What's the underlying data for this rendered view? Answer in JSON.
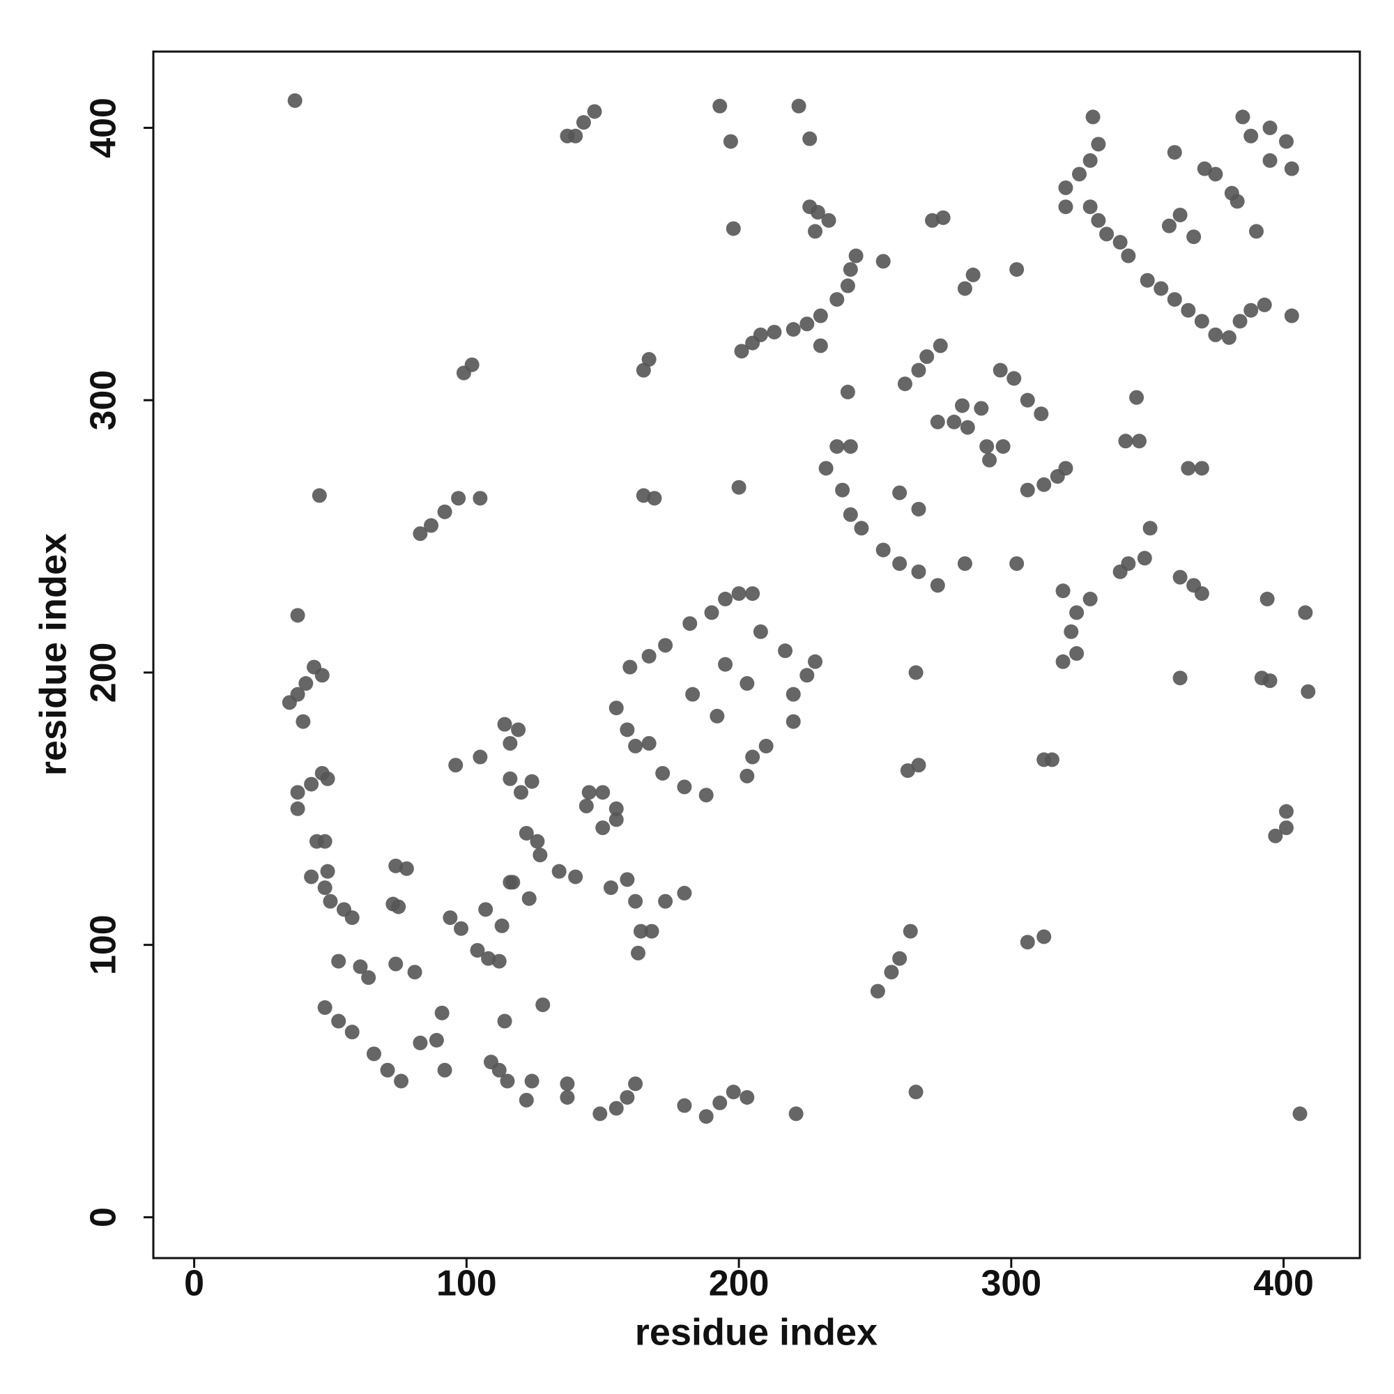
{
  "chart_data": {
    "type": "scatter",
    "x_label": "residue index",
    "y_label": "residue index",
    "xlim": [
      -15,
      428
    ],
    "ylim": [
      -15,
      428
    ],
    "xticks": [
      0,
      100,
      200,
      300,
      400
    ],
    "yticks": [
      0,
      100,
      200,
      300,
      400
    ],
    "color": "#555555",
    "x": [
      37,
      46,
      38,
      35,
      38,
      41,
      44,
      47,
      40,
      38,
      43,
      47,
      38,
      49,
      45,
      48,
      43,
      49,
      48,
      50,
      55,
      58,
      53,
      61,
      64,
      74,
      81,
      48,
      53,
      58,
      66,
      71,
      76,
      73,
      75,
      74,
      78,
      83,
      89,
      92,
      91,
      94,
      98,
      104,
      108,
      112,
      107,
      113,
      109,
      112,
      115,
      114,
      124,
      122,
      137,
      137,
      128,
      149,
      155,
      159,
      162,
      180,
      188,
      193,
      198,
      203,
      221,
      265,
      406,
      251,
      256,
      259,
      263,
      306,
      312,
      401,
      397,
      401,
      409,
      408,
      394,
      395,
      392,
      362,
      362,
      367,
      370,
      349,
      340,
      343,
      329,
      324,
      322,
      319,
      324,
      319,
      312,
      315,
      266,
      262,
      265,
      346,
      342,
      347,
      351,
      365,
      370,
      232,
      238,
      241,
      245,
      253,
      259,
      266,
      273,
      283,
      236,
      241,
      240,
      261,
      266,
      269,
      274,
      275,
      271,
      273,
      279,
      284,
      282,
      291,
      292,
      289,
      297,
      296,
      301,
      306,
      311,
      306,
      312,
      317,
      320,
      302,
      259,
      266,
      302,
      283,
      286,
      253,
      243,
      241,
      236,
      240,
      230,
      225,
      220,
      213,
      208,
      205,
      201,
      230,
      226,
      229,
      233,
      228,
      226,
      222,
      193,
      197,
      198,
      167,
      165,
      165,
      169,
      200,
      137,
      140,
      143,
      147,
      102,
      99,
      83,
      87,
      92,
      97,
      105,
      330,
      332,
      329,
      325,
      320,
      320,
      329,
      332,
      335,
      340,
      343,
      350,
      355,
      360,
      365,
      370,
      375,
      380,
      384,
      388,
      393,
      403,
      358,
      362,
      367,
      360,
      371,
      375,
      381,
      383,
      390,
      385,
      388,
      395,
      401,
      395,
      403,
      155,
      159,
      162,
      167,
      172,
      180,
      188,
      160,
      167,
      173,
      182,
      190,
      195,
      200,
      205,
      183,
      192,
      195,
      203,
      208,
      217,
      220,
      225,
      228,
      220,
      205,
      210,
      203,
      114,
      119,
      116,
      116,
      120,
      124,
      122,
      126,
      127,
      134,
      140,
      145,
      150,
      144,
      150,
      155,
      155,
      153,
      159,
      162,
      173,
      180,
      164,
      168,
      163,
      105,
      96,
      116,
      117,
      123
    ],
    "y": [
      410,
      265,
      221,
      189,
      192,
      196,
      202,
      199,
      182,
      156,
      159,
      163,
      150,
      161,
      138,
      138,
      125,
      127,
      121,
      116,
      113,
      110,
      94,
      92,
      88,
      93,
      90,
      77,
      72,
      68,
      60,
      54,
      50,
      115,
      114,
      129,
      128,
      64,
      65,
      54,
      75,
      110,
      106,
      98,
      95,
      94,
      113,
      107,
      57,
      54,
      50,
      72,
      50,
      43,
      49,
      44,
      78,
      38,
      40,
      44,
      49,
      41,
      37,
      42,
      46,
      44,
      38,
      46,
      38,
      83,
      90,
      95,
      105,
      101,
      103,
      149,
      140,
      143,
      193,
      222,
      227,
      197,
      198,
      198,
      235,
      232,
      229,
      242,
      237,
      240,
      227,
      222,
      215,
      204,
      207,
      230,
      168,
      168,
      166,
      164,
      200,
      301,
      285,
      285,
      253,
      275,
      275,
      275,
      267,
      258,
      253,
      245,
      240,
      237,
      232,
      240,
      283,
      283,
      303,
      306,
      311,
      316,
      320,
      367,
      366,
      292,
      292,
      290,
      298,
      283,
      278,
      297,
      283,
      311,
      308,
      300,
      295,
      267,
      269,
      272,
      275,
      240,
      266,
      260,
      348,
      341,
      346,
      351,
      353,
      348,
      337,
      342,
      331,
      328,
      326,
      325,
      324,
      321,
      318,
      320,
      371,
      369,
      366,
      362,
      396,
      408,
      408,
      395,
      363,
      315,
      311,
      265,
      264,
      268,
      397,
      397,
      402,
      406,
      313,
      310,
      251,
      254,
      259,
      264,
      264,
      404,
      394,
      388,
      383,
      378,
      371,
      371,
      366,
      361,
      358,
      353,
      344,
      341,
      337,
      333,
      329,
      324,
      323,
      329,
      333,
      335,
      331,
      364,
      368,
      360,
      391,
      385,
      383,
      376,
      373,
      362,
      404,
      397,
      400,
      395,
      388,
      385,
      187,
      179,
      173,
      174,
      163,
      158,
      155,
      202,
      206,
      210,
      218,
      222,
      227,
      229,
      229,
      192,
      184,
      203,
      196,
      215,
      208,
      192,
      199,
      204,
      182,
      169,
      173,
      162,
      181,
      179,
      174,
      161,
      156,
      160,
      141,
      138,
      133,
      127,
      125,
      156,
      156,
      151,
      143,
      146,
      150,
      121,
      124,
      116,
      116,
      119,
      105,
      105,
      97,
      169,
      166,
      123,
      123,
      117
    ]
  }
}
